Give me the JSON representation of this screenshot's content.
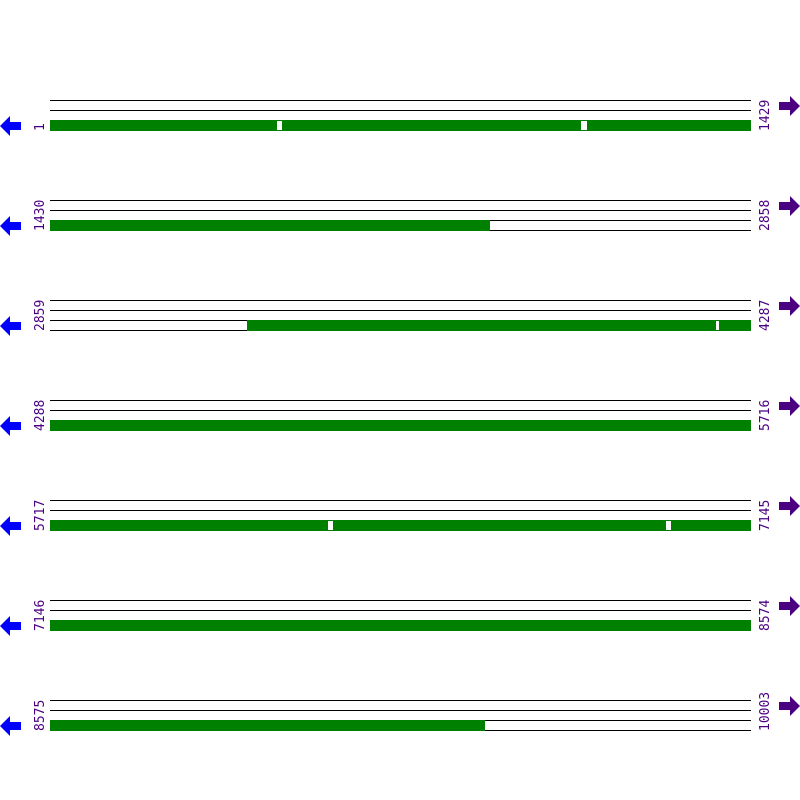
{
  "colors": {
    "orf": "#008000",
    "label": "#4b0082",
    "left_arrow": "#0000ff",
    "right_arrow": "#4b0082"
  },
  "icons": {
    "left": "arrow-left-icon",
    "right": "arrow-right-icon"
  },
  "rows": [
    {
      "start": "1",
      "end": "1429",
      "orfs": [
        [
          1,
          1429
        ]
      ],
      "gaps": [
        [
          464,
          472
        ],
        [
          1083,
          1095
        ]
      ]
    },
    {
      "start": "1430",
      "end": "2858",
      "orfs": [
        [
          1430,
          2326
        ]
      ],
      "gaps": []
    },
    {
      "start": "2859",
      "end": "4287",
      "orfs": [
        [
          3261,
          4287
        ]
      ],
      "gaps": [
        [
          4216,
          4220
        ]
      ]
    },
    {
      "start": "4288",
      "end": "5716",
      "orfs": [
        [
          4288,
          5716
        ]
      ],
      "gaps": []
    },
    {
      "start": "5717",
      "end": "7145",
      "orfs": [
        [
          5717,
          7145
        ]
      ],
      "gaps": [
        [
          6284,
          6292
        ],
        [
          6972,
          6982
        ]
      ]
    },
    {
      "start": "7146",
      "end": "8574",
      "orfs": [
        [
          7146,
          8574
        ]
      ],
      "gaps": []
    },
    {
      "start": "8575",
      "end": "10003",
      "orfs": [
        [
          8575,
          9461
        ]
      ],
      "gaps": []
    }
  ]
}
